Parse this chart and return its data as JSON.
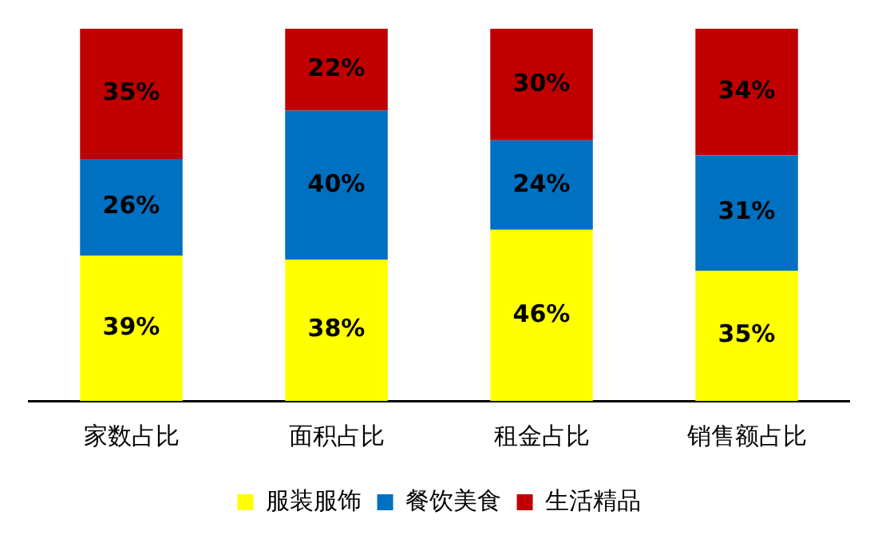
{
  "chart_data": {
    "type": "bar",
    "stacked": true,
    "categories": [
      "家数占比",
      "面积占比",
      "租金占比",
      "销售额占比"
    ],
    "series": [
      {
        "name": "服装服饰",
        "color": "#ffff00",
        "values": [
          39,
          38,
          46,
          35
        ],
        "value_labels": [
          "39%",
          "38%",
          "46%",
          "35%"
        ]
      },
      {
        "name": "餐饮美食",
        "color": "#0070c0",
        "values": [
          26,
          40,
          24,
          31
        ],
        "value_labels": [
          "26%",
          "40%",
          "24%",
          "31%"
        ]
      },
      {
        "name": "生活精品",
        "color": "#c00000",
        "values": [
          35,
          22,
          30,
          34
        ],
        "value_labels": [
          "35%",
          "22%",
          "30%",
          "34%"
        ]
      }
    ],
    "legend": "bottom",
    "grid": false
  }
}
